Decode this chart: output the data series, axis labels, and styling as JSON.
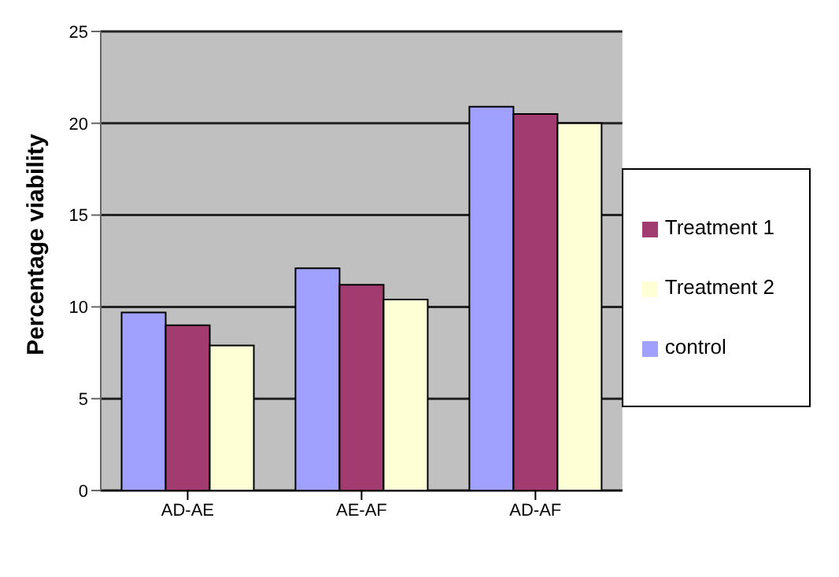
{
  "chart_data": {
    "type": "bar",
    "ylabel": "Percentage viability",
    "categories": [
      "AD-AE",
      "AE-AF",
      "AD-AF"
    ],
    "series": [
      {
        "name": "control",
        "color": "#a0a0ff",
        "values": [
          9.7,
          12.1,
          20.9
        ]
      },
      {
        "name": "Treatment 1",
        "color": "#a23b6f",
        "values": [
          9.0,
          11.2,
          20.5
        ]
      },
      {
        "name": "Treatment 2",
        "color": "#ffffd6",
        "values": [
          7.9,
          10.4,
          20.0
        ]
      }
    ],
    "ylim": [
      0,
      25
    ],
    "yticks": [
      0,
      5,
      10,
      15,
      20,
      25
    ],
    "grid": "y",
    "legend": "right"
  }
}
